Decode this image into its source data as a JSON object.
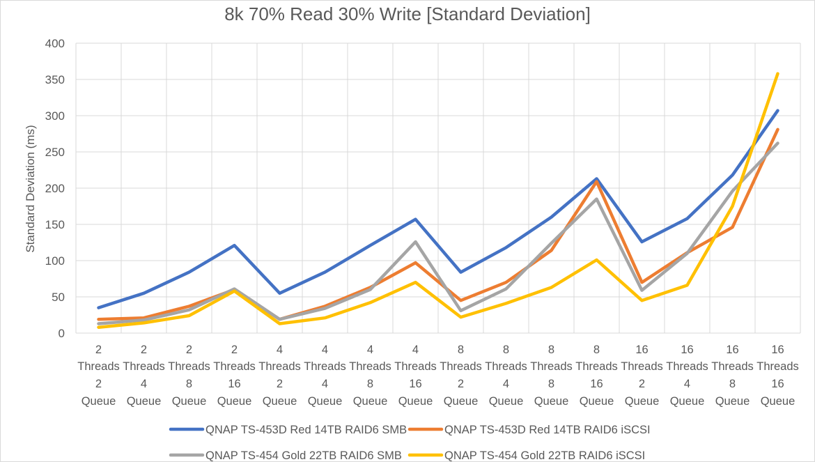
{
  "chart_data": {
    "type": "line",
    "title": "8k 70% Read 30% Write [Standard Deviation]",
    "xlabel": "",
    "ylabel": "Standard Deviation (ms)",
    "ylim": [
      0,
      400
    ],
    "yticks": [
      0,
      50,
      100,
      150,
      200,
      250,
      300,
      350,
      400
    ],
    "grid": true,
    "legend_position": "bottom",
    "categories": [
      [
        "2",
        "Threads",
        "2",
        "Queue"
      ],
      [
        "2",
        "Threads",
        "4",
        "Queue"
      ],
      [
        "2",
        "Threads",
        "8",
        "Queue"
      ],
      [
        "2",
        "Threads",
        "16",
        "Queue"
      ],
      [
        "4",
        "Threads",
        "2",
        "Queue"
      ],
      [
        "4",
        "Threads",
        "4",
        "Queue"
      ],
      [
        "4",
        "Threads",
        "8",
        "Queue"
      ],
      [
        "4",
        "Threads",
        "16",
        "Queue"
      ],
      [
        "8",
        "Threads",
        "2",
        "Queue"
      ],
      [
        "8",
        "Threads",
        "4",
        "Queue"
      ],
      [
        "8",
        "Threads",
        "8",
        "Queue"
      ],
      [
        "8",
        "Threads",
        "16",
        "Queue"
      ],
      [
        "16",
        "Threads",
        "2",
        "Queue"
      ],
      [
        "16",
        "Threads",
        "4",
        "Queue"
      ],
      [
        "16",
        "Threads",
        "8",
        "Queue"
      ],
      [
        "16",
        "Threads",
        "16",
        "Queue"
      ]
    ],
    "series": [
      {
        "name": "QNAP TS-453D Red 14TB RAID6 SMB",
        "color": "#4472c4",
        "values": [
          35,
          55,
          84,
          121,
          55,
          84,
          121,
          157,
          84,
          118,
          160,
          213,
          126,
          158,
          218,
          307
        ]
      },
      {
        "name": "QNAP TS-453D Red 14TB RAID6 iSCSI",
        "color": "#ed7d31",
        "values": [
          19,
          21,
          37,
          60,
          19,
          37,
          63,
          97,
          45,
          70,
          114,
          209,
          70,
          111,
          146,
          281
        ]
      },
      {
        "name": "QNAP TS-454 Gold 22TB RAID6 SMB",
        "color": "#a5a5a5",
        "values": [
          13,
          18,
          32,
          61,
          19,
          34,
          60,
          126,
          31,
          61,
          124,
          185,
          59,
          110,
          196,
          262
        ]
      },
      {
        "name": "QNAP TS-454 Gold 22TB RAID6 iSCSI",
        "color": "#ffc000",
        "values": [
          8,
          14,
          24,
          58,
          13,
          21,
          42,
          70,
          22,
          41,
          63,
          101,
          45,
          66,
          175,
          358
        ]
      }
    ]
  }
}
